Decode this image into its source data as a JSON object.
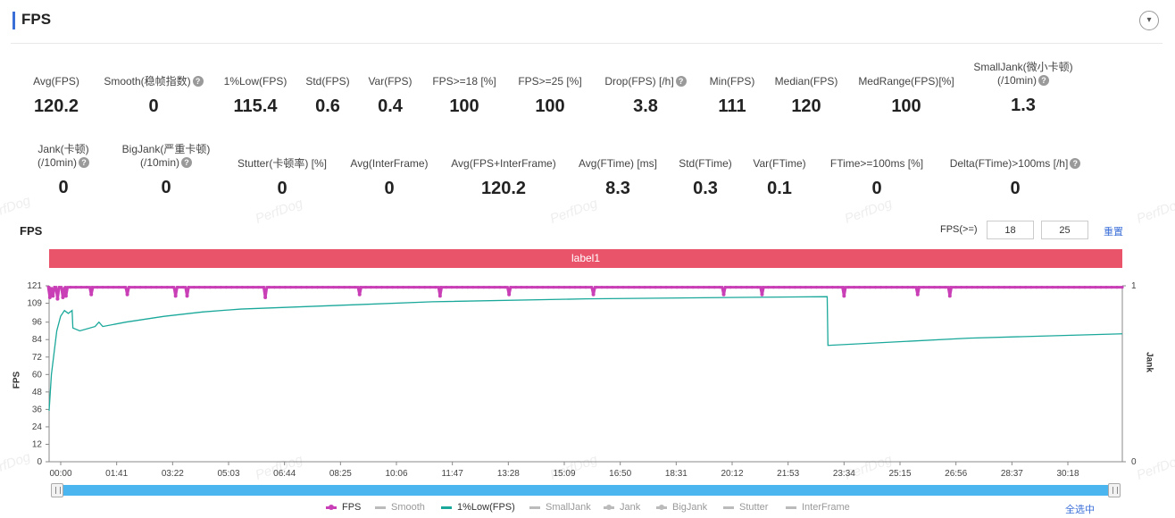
{
  "header": {
    "title": "FPS",
    "collapse_glyph": "▾"
  },
  "metrics_row1": [
    {
      "label": "Avg(FPS)",
      "value": "120.2",
      "help": false
    },
    {
      "label": "Smooth(稳帧指数)",
      "value": "0",
      "help": true
    },
    {
      "label": "1%Low(FPS)",
      "value": "115.4",
      "help": false
    },
    {
      "label": "Std(FPS)",
      "value": "0.6",
      "help": false
    },
    {
      "label": "Var(FPS)",
      "value": "0.4",
      "help": false
    },
    {
      "label": "FPS>=18 [%]",
      "value": "100",
      "help": false
    },
    {
      "label": "FPS>=25 [%]",
      "value": "100",
      "help": false
    },
    {
      "label": "Drop(FPS) [/h]",
      "value": "3.8",
      "help": true
    },
    {
      "label": "Min(FPS)",
      "value": "111",
      "help": false
    },
    {
      "label": "Median(FPS)",
      "value": "120",
      "help": false
    },
    {
      "label": "MedRange(FPS)[%]",
      "value": "100",
      "help": false
    },
    {
      "label": "SmallJank(微小卡顿)",
      "label2": "(/10min)",
      "value": "1.3",
      "help": true
    }
  ],
  "metrics_row2": [
    {
      "label": "Jank(卡顿)",
      "label2": "(/10min)",
      "value": "0",
      "help": true
    },
    {
      "label": "BigJank(严重卡顿)",
      "label2": "(/10min)",
      "value": "0",
      "help": true
    },
    {
      "label": "Stutter(卡顿率) [%]",
      "value": "0",
      "help": false
    },
    {
      "label": "Avg(InterFrame)",
      "value": "0",
      "help": false
    },
    {
      "label": "Avg(FPS+InterFrame)",
      "value": "120.2",
      "help": false
    },
    {
      "label": "Avg(FTime) [ms]",
      "value": "8.3",
      "help": false
    },
    {
      "label": "Std(FTime)",
      "value": "0.3",
      "help": false
    },
    {
      "label": "Var(FTime)",
      "value": "0.1",
      "help": false
    },
    {
      "label": "FTime>=100ms [%]",
      "value": "0",
      "help": false
    },
    {
      "label": "Delta(FTime)>100ms [/h]",
      "value": "0",
      "help": true
    }
  ],
  "help_glyph": "?",
  "watermark": "PerfDog",
  "chart_header": {
    "title": "FPS",
    "threshold_label": "FPS(>=)",
    "threshold1": "18",
    "threshold2": "25",
    "reset_label": "重置"
  },
  "label_bar": {
    "text": "label1",
    "color": "#e9546b"
  },
  "colors": {
    "fps": "#c93fb6",
    "low": "#1aa89a",
    "accent": "#3b6fd8",
    "scrollbar": "#4ab5ee"
  },
  "chart_data": {
    "type": "line",
    "ylabel": "FPS",
    "ylabel_right": "Jank",
    "ylim": [
      0,
      121
    ],
    "yticks": [
      0,
      12,
      24,
      36,
      48,
      60,
      72,
      84,
      96,
      109,
      121
    ],
    "y2ticks": [
      0,
      1
    ],
    "xticks": [
      "00:00",
      "01:41",
      "03:22",
      "05:03",
      "06:44",
      "08:25",
      "10:06",
      "11:47",
      "13:28",
      "15:09",
      "16:50",
      "18:31",
      "20:12",
      "21:53",
      "23:34",
      "25:15",
      "26:56",
      "28:37",
      "30:18"
    ],
    "series": [
      {
        "name": "FPS",
        "color": "#c93fb6",
        "baseline": 120,
        "dips": [
          [
            0.1,
            113
          ],
          [
            0.5,
            114
          ],
          [
            1.1,
            112
          ],
          [
            1.8,
            113
          ],
          [
            2.2,
            114
          ],
          [
            5.5,
            115
          ],
          [
            10.2,
            115
          ],
          [
            16.5,
            114
          ],
          [
            18.0,
            114
          ],
          [
            28.2,
            113
          ],
          [
            40.5,
            115
          ],
          [
            51.0,
            114
          ],
          [
            60.0,
            115
          ],
          [
            71.0,
            115
          ],
          [
            88.0,
            115
          ],
          [
            93.0,
            115
          ],
          [
            103.7,
            114
          ],
          [
            113.3,
            115
          ],
          [
            117.5,
            114
          ]
        ]
      },
      {
        "name": "1%Low(FPS)",
        "color": "#1aa89a",
        "points": [
          [
            0,
            35
          ],
          [
            0.3,
            60
          ],
          [
            1,
            90
          ],
          [
            1.5,
            100
          ],
          [
            2,
            104
          ],
          [
            2.5,
            102
          ],
          [
            3,
            104
          ],
          [
            3.1,
            92
          ],
          [
            4,
            90
          ],
          [
            6,
            93
          ],
          [
            6.5,
            96
          ],
          [
            7,
            93
          ],
          [
            10,
            96
          ],
          [
            15,
            100
          ],
          [
            20,
            103
          ],
          [
            25,
            105
          ],
          [
            30,
            106
          ],
          [
            40,
            108
          ],
          [
            50,
            110
          ],
          [
            70,
            112
          ],
          [
            90,
            113
          ],
          [
            101.5,
            113.5
          ],
          [
            101.6,
            80
          ],
          [
            120,
            85
          ],
          [
            140,
            88
          ]
        ]
      }
    ],
    "legend": [
      {
        "name": "FPS",
        "active": true,
        "color": "#c93fb6",
        "marker": true
      },
      {
        "name": "Smooth",
        "active": false,
        "color": "#bbbbbb",
        "marker": false
      },
      {
        "name": "1%Low(FPS)",
        "active": true,
        "color": "#1aa89a",
        "marker": false
      },
      {
        "name": "SmallJank",
        "active": false,
        "color": "#bbbbbb",
        "marker": false
      },
      {
        "name": "Jank",
        "active": false,
        "color": "#bbbbbb",
        "marker": true
      },
      {
        "name": "BigJank",
        "active": false,
        "color": "#bbbbbb",
        "marker": true
      },
      {
        "name": "Stutter",
        "active": false,
        "color": "#bbbbbb",
        "marker": false
      },
      {
        "name": "InterFrame",
        "active": false,
        "color": "#bbbbbb",
        "marker": false
      }
    ]
  },
  "select_all_label": "全选中"
}
